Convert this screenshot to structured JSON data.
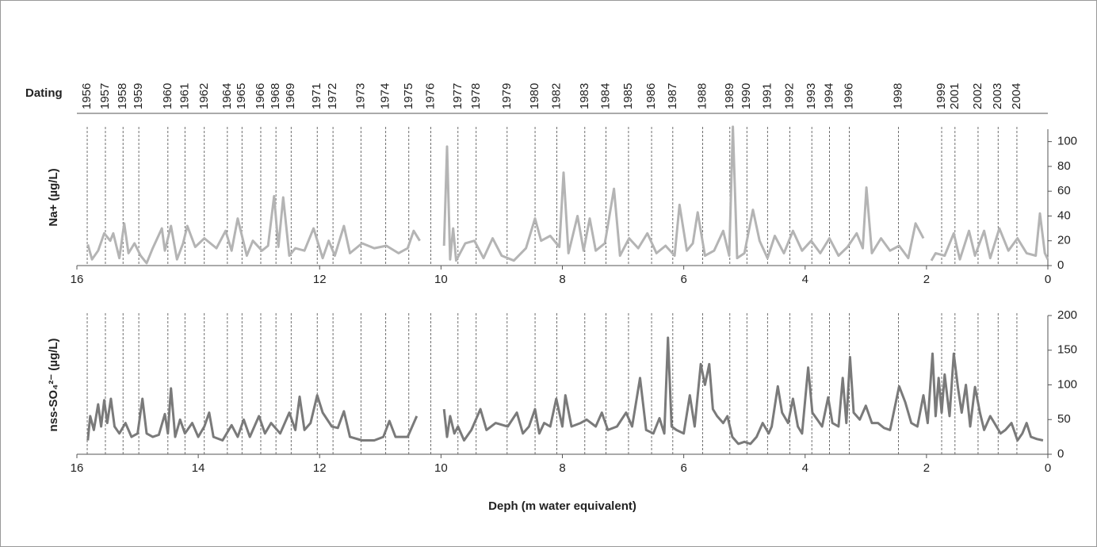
{
  "dating": {
    "label": "Dating",
    "years": [
      "1956",
      "1957",
      "1958",
      "1959",
      "1960",
      "1961",
      "1962",
      "1964",
      "1965",
      "1966",
      "1968",
      "1969",
      "1971",
      "1972",
      "1973",
      "1974",
      "1975",
      "1976",
      "1977",
      "1978",
      "1979",
      "1980",
      "1982",
      "1983",
      "1984",
      "1985",
      "1986",
      "1987",
      "1988",
      "1989",
      "1990",
      "1991",
      "1992",
      "1993",
      "1994",
      "1996",
      "1998",
      "1999",
      "2001",
      "2002",
      "2003",
      "2004"
    ],
    "depths": [
      15.83,
      15.53,
      15.24,
      14.98,
      14.5,
      14.22,
      13.9,
      13.52,
      13.28,
      12.97,
      12.72,
      12.47,
      12.04,
      11.78,
      11.32,
      10.91,
      10.53,
      10.17,
      9.72,
      9.42,
      8.91,
      8.45,
      8.09,
      7.63,
      7.28,
      6.91,
      6.53,
      6.18,
      5.69,
      5.24,
      4.96,
      4.62,
      4.25,
      3.89,
      3.6,
      3.27,
      2.46,
      1.75,
      1.53,
      1.15,
      0.82,
      0.51
    ]
  },
  "chart_data": [
    {
      "type": "line",
      "y_label": "Na+ (µg/L)",
      "x": [
        15.82,
        15.75,
        15.65,
        15.55,
        15.45,
        15.4,
        15.3,
        15.22,
        15.15,
        15.05,
        14.95,
        14.85,
        14.75,
        14.6,
        14.55,
        14.45,
        14.35,
        14.25,
        14.18,
        14.05,
        13.9,
        13.7,
        13.55,
        13.45,
        13.35,
        13.2,
        13.1,
        12.95,
        12.85,
        12.75,
        12.68,
        12.6,
        12.5,
        12.4,
        12.25,
        12.1,
        11.95,
        11.85,
        11.75,
        11.6,
        11.5,
        11.3,
        11.1,
        10.9,
        10.7,
        10.55,
        10.45,
        10.35,
        10.2,
        9.95,
        9.9,
        9.85,
        9.8,
        9.75,
        9.6,
        9.45,
        9.3,
        9.15,
        9.0,
        8.8,
        8.6,
        8.45,
        8.35,
        8.2,
        8.05,
        7.98,
        7.9,
        7.75,
        7.65,
        7.55,
        7.45,
        7.3,
        7.15,
        7.05,
        6.9,
        6.75,
        6.6,
        6.45,
        6.3,
        6.15,
        6.07,
        5.95,
        5.85,
        5.77,
        5.65,
        5.5,
        5.35,
        5.25,
        5.19,
        5.12,
        5.0,
        4.86,
        4.75,
        4.62,
        4.5,
        4.35,
        4.2,
        4.05,
        3.9,
        3.75,
        3.6,
        3.45,
        3.3,
        3.15,
        3.05,
        2.99,
        2.9,
        2.75,
        2.6,
        2.45,
        2.3,
        2.18,
        2.05,
        1.98,
        1.92,
        1.85,
        1.7,
        1.55,
        1.45,
        1.3,
        1.2,
        1.05,
        0.95,
        0.8,
        0.65,
        0.5,
        0.35,
        0.2,
        0.13,
        0.05,
        0.0
      ],
      "series": [
        {
          "color": "#b4b4b4",
          "values": [
            17,
            5,
            12,
            26,
            20,
            26,
            6,
            34,
            10,
            18,
            8,
            2,
            14,
            30,
            12,
            32,
            5,
            18,
            32,
            15,
            22,
            14,
            28,
            12,
            38,
            8,
            20,
            12,
            16,
            56,
            15,
            55,
            8,
            14,
            12,
            30,
            6,
            20,
            8,
            32,
            10,
            18,
            14,
            16,
            10,
            14,
            28,
            20,
            null,
            16,
            96,
            5,
            30,
            4,
            18,
            20,
            6,
            22,
            8,
            4,
            14,
            38,
            20,
            24,
            15,
            75,
            10,
            40,
            12,
            38,
            12,
            18,
            62,
            8,
            22,
            14,
            26,
            10,
            16,
            8,
            49,
            12,
            18,
            43,
            8,
            12,
            28,
            8,
            112,
            6,
            10,
            45,
            20,
            6,
            24,
            10,
            28,
            12,
            20,
            10,
            22,
            8,
            15,
            26,
            14,
            63,
            10,
            22,
            12,
            16,
            6,
            34,
            22,
            null,
            4,
            10,
            8,
            26,
            5,
            28,
            8,
            28,
            6,
            30,
            12,
            22,
            10,
            8,
            42,
            10,
            5
          ]
        }
      ],
      "xlim": [
        16,
        0
      ],
      "xticks": [
        16,
        12,
        10,
        8,
        6,
        4,
        2,
        0
      ],
      "ylim": [
        0,
        110
      ],
      "yticks": [
        0,
        20,
        40,
        60,
        80,
        100
      ]
    },
    {
      "type": "line",
      "y_label": "nss-SO₄²⁻ (µg/L)",
      "x_label": "Deph (m water equivalent)",
      "x": [
        15.82,
        15.78,
        15.72,
        15.65,
        15.6,
        15.55,
        15.5,
        15.44,
        15.38,
        15.3,
        15.2,
        15.1,
        15.0,
        14.92,
        14.85,
        14.75,
        14.65,
        14.55,
        14.5,
        14.45,
        14.38,
        14.3,
        14.22,
        14.1,
        14.0,
        13.9,
        13.82,
        13.75,
        13.6,
        13.45,
        13.35,
        13.25,
        13.15,
        13.0,
        12.9,
        12.8,
        12.65,
        12.5,
        12.4,
        12.33,
        12.25,
        12.15,
        12.04,
        11.95,
        11.8,
        11.7,
        11.6,
        11.5,
        11.3,
        11.1,
        10.95,
        10.85,
        10.75,
        10.55,
        10.4,
        10.2,
        9.95,
        9.9,
        9.85,
        9.78,
        9.72,
        9.62,
        9.5,
        9.35,
        9.25,
        9.1,
        8.9,
        8.75,
        8.65,
        8.55,
        8.45,
        8.38,
        8.3,
        8.2,
        8.1,
        8.0,
        7.95,
        7.85,
        7.7,
        7.6,
        7.45,
        7.35,
        7.25,
        7.1,
        6.95,
        6.85,
        6.72,
        6.62,
        6.5,
        6.4,
        6.32,
        6.26,
        6.2,
        6.12,
        6.0,
        5.9,
        5.82,
        5.72,
        5.65,
        5.58,
        5.52,
        5.45,
        5.35,
        5.28,
        5.2,
        5.1,
        5.0,
        4.9,
        4.8,
        4.7,
        4.6,
        4.55,
        4.45,
        4.38,
        4.28,
        4.2,
        4.12,
        4.05,
        3.95,
        3.88,
        3.8,
        3.72,
        3.62,
        3.55,
        3.45,
        3.38,
        3.32,
        3.26,
        3.2,
        3.1,
        3.0,
        2.9,
        2.8,
        2.7,
        2.6,
        2.45,
        2.35,
        2.25,
        2.15,
        2.05,
        1.98,
        1.9,
        1.85,
        1.8,
        1.75,
        1.7,
        1.62,
        1.55,
        1.48,
        1.42,
        1.35,
        1.28,
        1.2,
        1.12,
        1.05,
        0.95,
        0.88,
        0.78,
        0.7,
        0.6,
        0.5,
        0.42,
        0.35,
        0.28,
        0.18,
        0.08
      ],
      "series": [
        {
          "color": "#7a7a7a",
          "values": [
            20,
            55,
            35,
            72,
            40,
            78,
            45,
            80,
            40,
            30,
            45,
            25,
            30,
            80,
            30,
            25,
            28,
            58,
            30,
            95,
            25,
            50,
            30,
            45,
            25,
            40,
            60,
            25,
            20,
            42,
            25,
            50,
            25,
            55,
            30,
            45,
            30,
            60,
            35,
            83,
            35,
            45,
            85,
            60,
            40,
            38,
            62,
            25,
            20,
            20,
            25,
            48,
            25,
            25,
            55,
            null,
            65,
            25,
            55,
            30,
            40,
            20,
            35,
            65,
            35,
            45,
            40,
            60,
            30,
            40,
            65,
            30,
            45,
            40,
            80,
            40,
            85,
            40,
            45,
            50,
            40,
            60,
            35,
            40,
            60,
            40,
            110,
            35,
            30,
            52,
            30,
            168,
            40,
            35,
            30,
            85,
            40,
            130,
            100,
            130,
            65,
            55,
            45,
            55,
            25,
            15,
            18,
            15,
            25,
            45,
            30,
            40,
            98,
            60,
            45,
            80,
            40,
            30,
            125,
            60,
            50,
            40,
            82,
            45,
            40,
            110,
            45,
            140,
            60,
            50,
            70,
            45,
            45,
            38,
            35,
            98,
            75,
            45,
            40,
            85,
            45,
            145,
            55,
            110,
            60,
            115,
            55,
            145,
            95,
            60,
            100,
            40,
            97,
            60,
            35,
            55,
            45,
            30,
            35,
            45,
            20,
            30,
            45,
            25,
            22,
            20
          ]
        }
      ],
      "xlim": [
        16,
        0
      ],
      "xticks": [
        16,
        14,
        12,
        10,
        8,
        6,
        4,
        2,
        0
      ],
      "ylim": [
        0,
        200
      ],
      "yticks": [
        0,
        50,
        100,
        150,
        200
      ]
    }
  ]
}
